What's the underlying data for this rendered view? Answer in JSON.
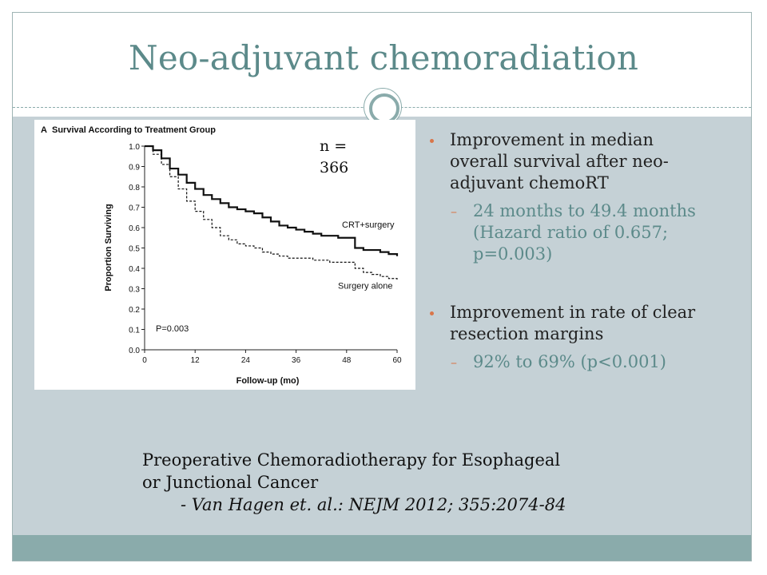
{
  "slide": {
    "title": "Neo-adjuvant chemoradiation",
    "n_label": "n = 366",
    "bullets": [
      {
        "text": "Improvement in median overall survival after neo-adjuvant chemoRT",
        "sub": "24 months to 49.4 months (Hazard ratio of 0.657; p=0.003)"
      },
      {
        "text": "Improvement in rate of clear resection margins",
        "sub": "92% to 69% (p<0.001)"
      }
    ],
    "caption_line1": "Preoperative Chemoradiotherapy for Esophageal",
    "caption_line2": "or Junctional Cancer",
    "citation": "- Van Hagen et. al.: NEJM 2012; 355:2074-84",
    "colors": {
      "title": "#5c8a8a",
      "band": "#c5d1d6",
      "footer": "#8aabab",
      "bullet": "#d9764a"
    }
  },
  "chart_data": {
    "type": "line",
    "panel_label": "A",
    "title": "Survival According to Treatment Group",
    "xlabel": "Follow-up (mo)",
    "ylabel": "Proportion Surviving",
    "xlim": [
      0,
      60
    ],
    "ylim": [
      0,
      1
    ],
    "xticks": [
      0,
      12,
      24,
      36,
      48,
      60
    ],
    "yticks": [
      0.0,
      0.1,
      0.2,
      0.3,
      0.4,
      0.5,
      0.6,
      0.7,
      0.8,
      0.9,
      1.0
    ],
    "annotation": "P=0.003",
    "series": [
      {
        "name": "CRT+surgery",
        "style": "solid",
        "x": [
          0,
          2,
          4,
          6,
          8,
          10,
          12,
          14,
          16,
          18,
          20,
          22,
          24,
          26,
          28,
          30,
          32,
          34,
          36,
          38,
          40,
          42,
          44,
          46,
          48,
          50,
          52,
          54,
          56,
          58,
          60
        ],
        "y": [
          1.0,
          0.98,
          0.94,
          0.89,
          0.86,
          0.82,
          0.79,
          0.76,
          0.74,
          0.72,
          0.7,
          0.69,
          0.68,
          0.67,
          0.65,
          0.63,
          0.61,
          0.6,
          0.59,
          0.58,
          0.57,
          0.56,
          0.56,
          0.55,
          0.55,
          0.5,
          0.49,
          0.49,
          0.48,
          0.47,
          0.46
        ]
      },
      {
        "name": "Surgery alone",
        "style": "dashed",
        "x": [
          0,
          2,
          4,
          6,
          8,
          10,
          12,
          14,
          16,
          18,
          20,
          22,
          24,
          26,
          28,
          30,
          32,
          34,
          36,
          38,
          40,
          42,
          44,
          46,
          48,
          50,
          52,
          54,
          56,
          58,
          60
        ],
        "y": [
          1.0,
          0.96,
          0.91,
          0.85,
          0.79,
          0.73,
          0.68,
          0.64,
          0.6,
          0.56,
          0.54,
          0.52,
          0.51,
          0.5,
          0.48,
          0.47,
          0.46,
          0.45,
          0.45,
          0.45,
          0.44,
          0.44,
          0.43,
          0.43,
          0.43,
          0.4,
          0.38,
          0.37,
          0.36,
          0.35,
          0.34
        ]
      }
    ]
  }
}
